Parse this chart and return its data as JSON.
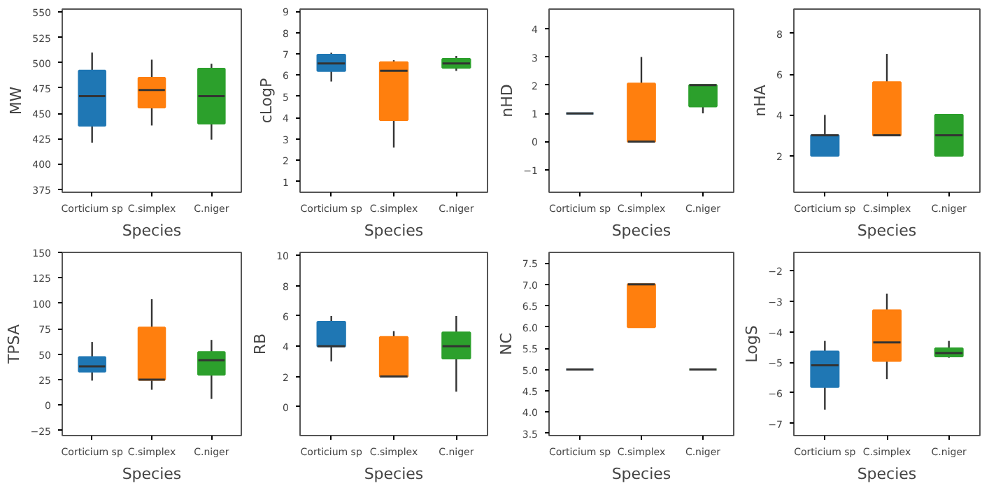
{
  "chart_data": [
    {
      "type": "box",
      "ylabel": "MW",
      "xlabel": "Species",
      "categories": [
        "Corticium sp",
        "C.simplex",
        "C.niger"
      ],
      "colors": [
        "#1f77b4",
        "#ff7f0e",
        "#2ca02c"
      ],
      "ylim": [
        372,
        553
      ],
      "yticks": [
        375,
        400,
        425,
        450,
        475,
        500,
        525,
        550
      ],
      "grid": false,
      "boxes": [
        {
          "low": 421,
          "q1": 438,
          "median": 467,
          "q3": 492,
          "high": 510
        },
        {
          "low": 438,
          "q1": 456,
          "median": 473,
          "q3": 485,
          "high": 503
        },
        {
          "low": 424,
          "q1": 440,
          "median": 467,
          "q3": 494,
          "high": 499
        }
      ]
    },
    {
      "type": "box",
      "ylabel": "cLogP",
      "xlabel": "Species",
      "categories": [
        "Corticium sp",
        "C.simplex",
        "C.niger"
      ],
      "colors": [
        "#1f77b4",
        "#ff7f0e",
        "#2ca02c"
      ],
      "ylim": [
        0.5,
        9.1
      ],
      "yticks": [
        1,
        2,
        3,
        4,
        5,
        6,
        7,
        8,
        9
      ],
      "grid": false,
      "boxes": [
        {
          "low": 5.7,
          "q1": 6.2,
          "median": 6.55,
          "q3": 6.95,
          "high": 7.05
        },
        {
          "low": 2.6,
          "q1": 3.9,
          "median": 6.2,
          "q3": 6.6,
          "high": 6.7
        },
        {
          "low": 6.2,
          "q1": 6.35,
          "median": 6.55,
          "q3": 6.75,
          "high": 6.9
        }
      ]
    },
    {
      "type": "box",
      "ylabel": "nHD",
      "xlabel": "Species",
      "categories": [
        "Corticium sp",
        "C.simplex",
        "C.niger"
      ],
      "colors": [
        "#1f77b4",
        "#ff7f0e",
        "#2ca02c"
      ],
      "ylim": [
        -1.8,
        4.7
      ],
      "yticks": [
        -1,
        0,
        1,
        2,
        3,
        4
      ],
      "grid": false,
      "boxes": [
        {
          "low": 1,
          "q1": 1,
          "median": 1,
          "q3": 1,
          "high": 1
        },
        {
          "low": 0,
          "q1": 0,
          "median": 0,
          "q3": 2.05,
          "high": 3
        },
        {
          "low": 1,
          "q1": 1.25,
          "median": 2,
          "q3": 2,
          "high": 2
        }
      ]
    },
    {
      "type": "box",
      "ylabel": "nHA",
      "xlabel": "Species",
      "categories": [
        "Corticium sp",
        "C.simplex",
        "C.niger"
      ],
      "colors": [
        "#1f77b4",
        "#ff7f0e",
        "#2ca02c"
      ],
      "ylim": [
        0.2,
        9.2
      ],
      "yticks": [
        2,
        4,
        6,
        8
      ],
      "grid": false,
      "boxes": [
        {
          "low": 2,
          "q1": 2,
          "median": 3,
          "q3": 3,
          "high": 4
        },
        {
          "low": 3,
          "q1": 3,
          "median": 3,
          "q3": 5.6,
          "high": 7
        },
        {
          "low": 2,
          "q1": 2,
          "median": 3,
          "q3": 4,
          "high": 4
        }
      ]
    },
    {
      "type": "box",
      "ylabel": "TPSA",
      "xlabel": "Species",
      "categories": [
        "Corticium sp",
        "C.simplex",
        "C.niger"
      ],
      "colors": [
        "#1f77b4",
        "#ff7f0e",
        "#2ca02c"
      ],
      "ylim": [
        -30,
        150
      ],
      "yticks": [
        -25,
        0,
        25,
        50,
        75,
        100,
        125,
        150
      ],
      "grid": false,
      "boxes": [
        {
          "low": 24,
          "q1": 33,
          "median": 38,
          "q3": 47,
          "high": 62
        },
        {
          "low": 15,
          "q1": 25,
          "median": 25,
          "q3": 76,
          "high": 104
        },
        {
          "low": 6,
          "q1": 30,
          "median": 44,
          "q3": 52,
          "high": 64
        }
      ]
    },
    {
      "type": "box",
      "ylabel": "RB",
      "xlabel": "Species",
      "categories": [
        "Corticium sp",
        "C.simplex",
        "C.niger"
      ],
      "colors": [
        "#1f77b4",
        "#ff7f0e",
        "#2ca02c"
      ],
      "ylim": [
        -1.9,
        10.2
      ],
      "yticks": [
        0,
        2,
        4,
        6,
        8,
        10
      ],
      "grid": false,
      "boxes": [
        {
          "low": 3,
          "q1": 4,
          "median": 4,
          "q3": 5.6,
          "high": 6
        },
        {
          "low": 2,
          "q1": 2,
          "median": 2,
          "q3": 4.6,
          "high": 5
        },
        {
          "low": 1,
          "q1": 3.2,
          "median": 4,
          "q3": 4.9,
          "high": 6
        }
      ]
    },
    {
      "type": "box",
      "ylabel": "NC",
      "xlabel": "Species",
      "categories": [
        "Corticium sp",
        "C.simplex",
        "C.niger"
      ],
      "colors": [
        "#1f77b4",
        "#ff7f0e",
        "#2ca02c"
      ],
      "ylim": [
        3.45,
        7.75
      ],
      "yticks": [
        3.5,
        {
          "value": 4,
          "label": "4.0"
        },
        4.5,
        {
          "value": 5,
          "label": "5.0"
        },
        5.5,
        {
          "value": 6,
          "label": "6.0"
        },
        6.5,
        {
          "value": 7,
          "label": "7.0"
        },
        7.5
      ],
      "grid": false,
      "boxes": [
        {
          "low": 5,
          "q1": 5,
          "median": 5,
          "q3": 5,
          "high": 5
        },
        {
          "low": 6,
          "q1": 6,
          "median": 7,
          "q3": 7,
          "high": 7
        },
        {
          "low": 5,
          "q1": 5,
          "median": 5,
          "q3": 5,
          "high": 5
        }
      ]
    },
    {
      "type": "box",
      "ylabel": "LogS",
      "xlabel": "Species",
      "categories": [
        "Corticium sp",
        "C.simplex",
        "C.niger"
      ],
      "colors": [
        "#1f77b4",
        "#ff7f0e",
        "#2ca02c"
      ],
      "ylim": [
        -7.4,
        -1.4
      ],
      "yticks": [
        -7,
        -6,
        -5,
        -4,
        -3,
        -2
      ],
      "grid": false,
      "boxes": [
        {
          "low": -6.55,
          "q1": -5.8,
          "median": -5.1,
          "q3": -4.65,
          "high": -4.3
        },
        {
          "low": -5.55,
          "q1": -4.95,
          "median": -4.35,
          "q3": -3.3,
          "high": -2.75
        },
        {
          "low": -4.85,
          "q1": -4.8,
          "median": -4.7,
          "q3": -4.55,
          "high": -4.3
        }
      ]
    }
  ]
}
